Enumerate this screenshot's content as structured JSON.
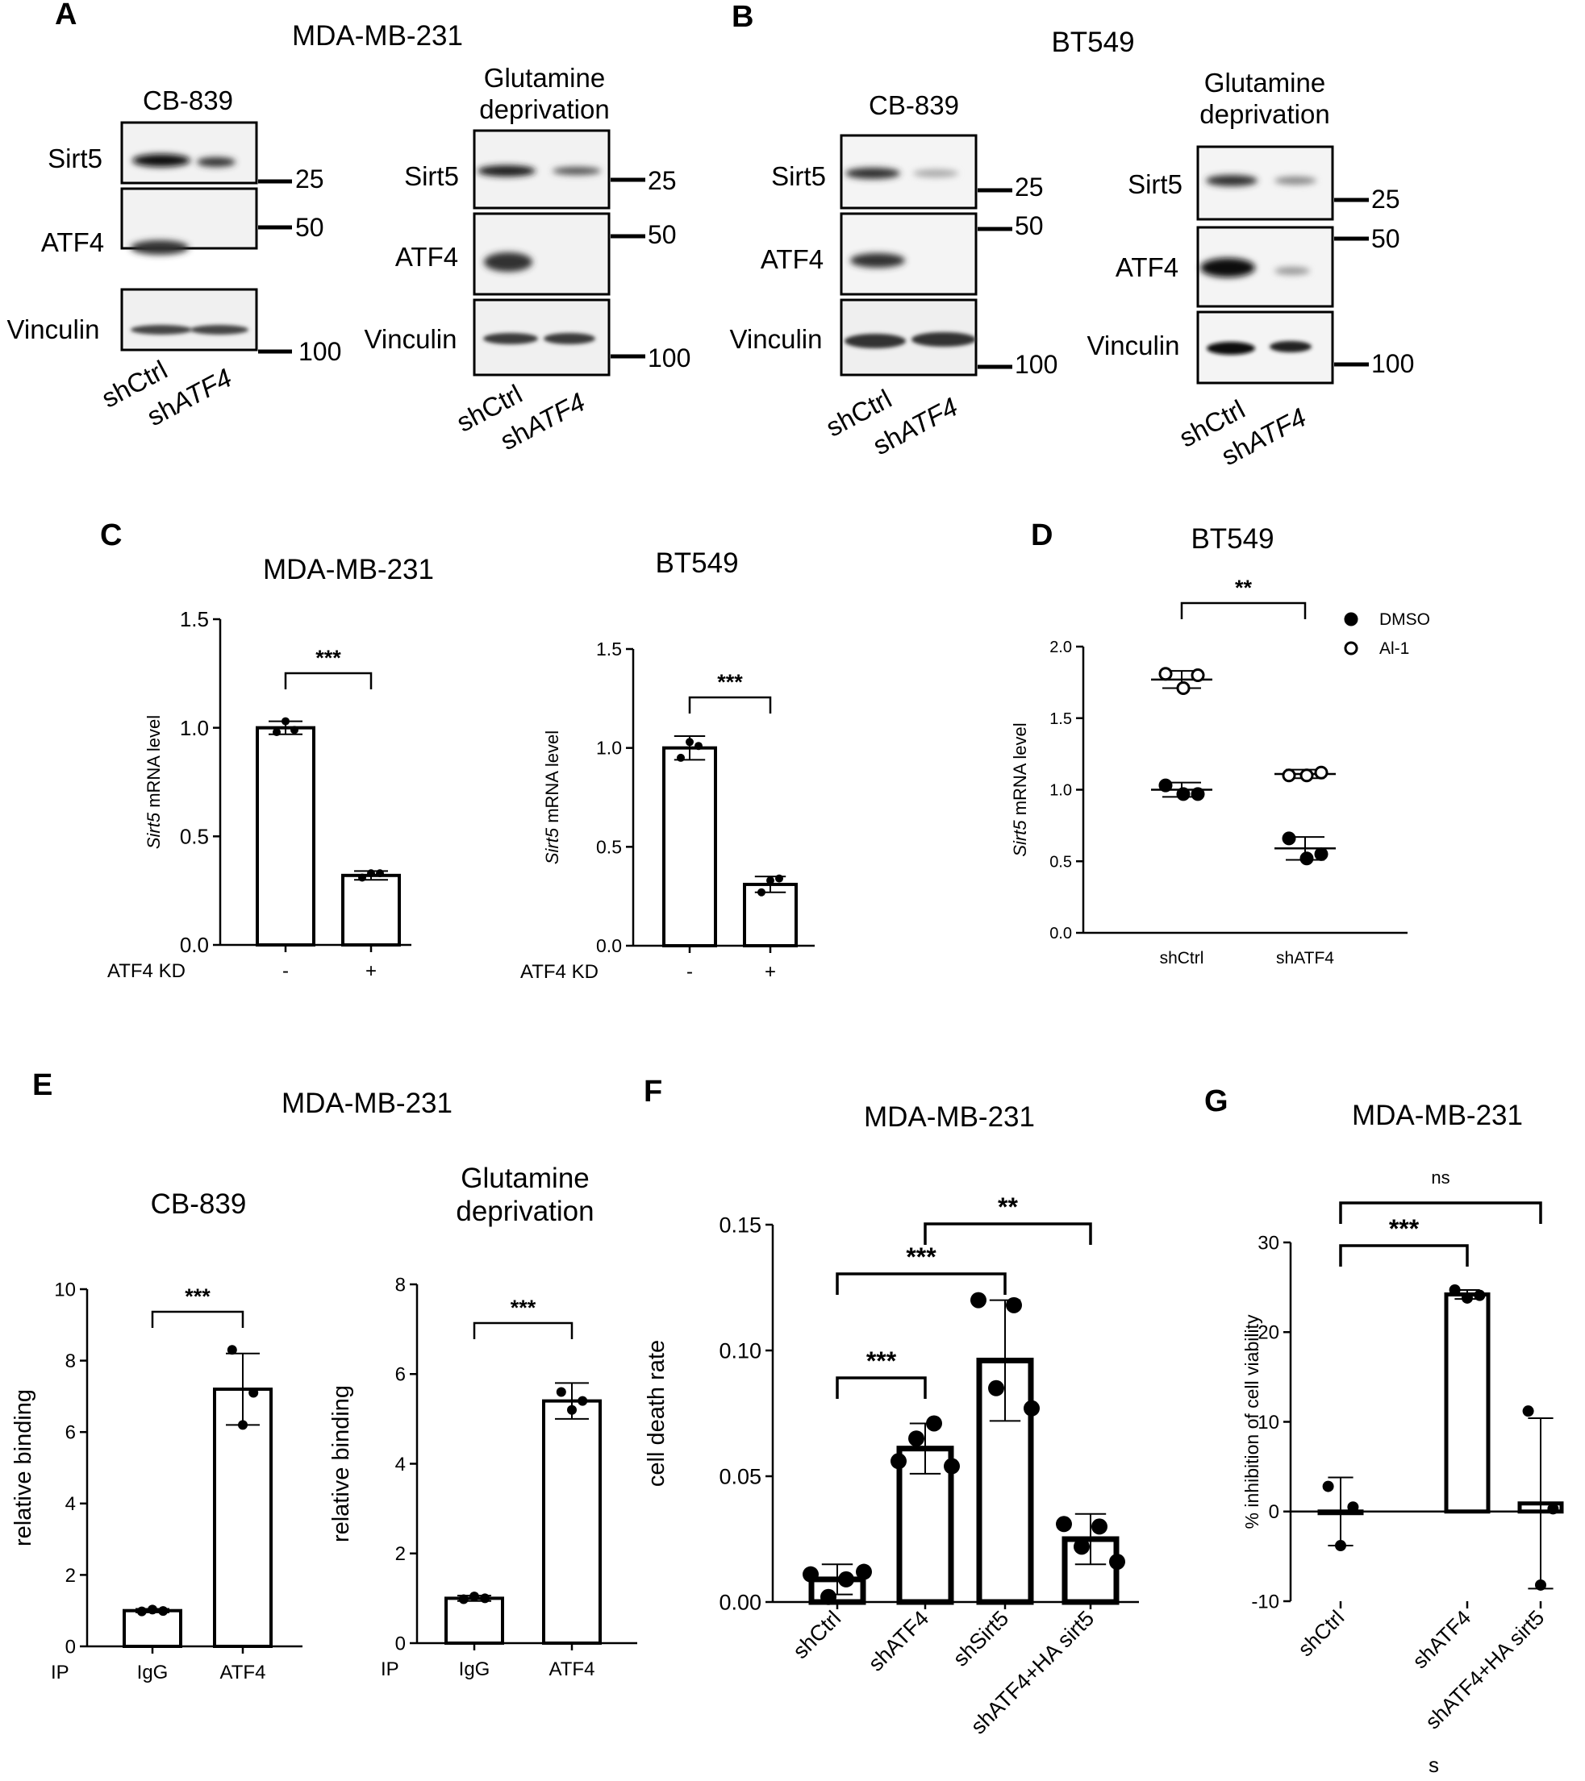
{
  "panels": {
    "A": {
      "letter": "A",
      "cell_line": "MDA-MB-231",
      "blots": [
        {
          "condition": "CB-839",
          "rows": [
            "Sirt5",
            "ATF4",
            "Vinculin"
          ],
          "markers": [
            "25",
            "50",
            "100"
          ],
          "lanes": [
            "shCtrl",
            "sh",
            "ATF4"
          ]
        },
        {
          "condition_line1": "Glutamine",
          "condition_line2": "deprivation",
          "rows": [
            "Sirt5",
            "ATF4",
            "Vinculin"
          ],
          "markers": [
            "25",
            "50",
            "100"
          ],
          "lanes": [
            "shCtrl",
            "sh",
            "ATF4"
          ]
        }
      ]
    },
    "B": {
      "letter": "B",
      "cell_line": "BT549",
      "blots": [
        {
          "condition": "CB-839",
          "rows": [
            "Sirt5",
            "ATF4",
            "Vinculin"
          ],
          "markers": [
            "25",
            "50",
            "100"
          ],
          "lanes": [
            "shCtrl",
            "sh",
            "ATF4"
          ]
        },
        {
          "condition_line1": "Glutamine",
          "condition_line2": "deprivation",
          "rows": [
            "Sirt5",
            "ATF4",
            "Vinculin"
          ],
          "markers": [
            "25",
            "50",
            "100"
          ],
          "lanes": [
            "shCtrl",
            "sh",
            "ATF4"
          ]
        }
      ]
    },
    "C": {
      "letter": "C"
    },
    "D": {
      "letter": "D"
    },
    "E": {
      "letter": "E",
      "cell_line": "MDA-MB-231"
    },
    "F": {
      "letter": "F"
    },
    "G": {
      "letter": "G"
    }
  },
  "chart_data": [
    {
      "id": "C-left",
      "type": "bar",
      "title": "MDA-MB-231",
      "ylabel_italic": "Sirt5",
      "ylabel_rest": " mRNA level",
      "xlabel": "ATF4 KD",
      "categories": [
        "-",
        "+"
      ],
      "values": [
        1.0,
        0.32
      ],
      "errors": [
        0.03,
        0.02
      ],
      "points": [
        [
          0.98,
          1.03,
          0.99
        ],
        [
          0.31,
          0.33,
          0.33
        ]
      ],
      "ylim": [
        0,
        1.5
      ],
      "yticks": [
        "0.0",
        "0.5",
        "1.0",
        "1.5"
      ],
      "significance": [
        {
          "from": 0,
          "to": 1,
          "label": "***"
        }
      ]
    },
    {
      "id": "C-right",
      "type": "bar",
      "title": "BT549",
      "ylabel_italic": "Sirt5",
      "ylabel_rest": " mRNA level",
      "xlabel": "ATF4 KD",
      "categories": [
        "-",
        "+"
      ],
      "values": [
        1.0,
        0.31
      ],
      "errors": [
        0.06,
        0.04
      ],
      "points": [
        [
          0.95,
          1.03,
          1.01
        ],
        [
          0.27,
          0.33,
          0.34
        ]
      ],
      "ylim": [
        0,
        1.5
      ],
      "yticks": [
        "0.0",
        "0.5",
        "1.0",
        "1.5"
      ],
      "significance": [
        {
          "from": 0,
          "to": 1,
          "label": "***"
        }
      ]
    },
    {
      "id": "D",
      "type": "scatter",
      "title": "BT549",
      "ylabel_italic": "Sirt5",
      "ylabel_rest": " mRNA level",
      "categories": [
        "shCtrl",
        "shATF4"
      ],
      "ylim": [
        0,
        2.0
      ],
      "yticks": [
        "0.0",
        "0.5",
        "1.0",
        "1.5",
        "2.0"
      ],
      "series": [
        {
          "name": "DMSO",
          "filled": true,
          "means": [
            1.0,
            0.59
          ],
          "sd": [
            0.05,
            0.08
          ],
          "points": [
            [
              1.03,
              0.97,
              0.97
            ],
            [
              0.66,
              0.52,
              0.55
            ]
          ]
        },
        {
          "name": "Al-1",
          "filled": false,
          "means": [
            1.77,
            1.11
          ],
          "sd": [
            0.06,
            0.03
          ],
          "points": [
            [
              1.81,
              1.71,
              1.8
            ],
            [
              1.1,
              1.1,
              1.12
            ]
          ]
        }
      ],
      "significance": [
        {
          "from": 0,
          "to": 1,
          "label": "**"
        }
      ]
    },
    {
      "id": "E-left",
      "type": "bar",
      "title": "CB-839",
      "ylabel": "relative binding",
      "xprefix": "IP",
      "categories": [
        "IgG",
        "ATF4"
      ],
      "values": [
        1.0,
        7.2
      ],
      "errors": [
        0.05,
        1.0
      ],
      "points": [
        [
          0.98,
          1.03,
          0.99
        ],
        [
          8.3,
          6.2,
          7.1
        ]
      ],
      "ylim": [
        0,
        10
      ],
      "yticks": [
        "0",
        "2",
        "4",
        "6",
        "8",
        "10"
      ],
      "significance": [
        {
          "from": 0,
          "to": 1,
          "label": "***"
        }
      ]
    },
    {
      "id": "E-right",
      "type": "bar",
      "title_line1": "Glutamine",
      "title_line2": "deprivation",
      "ylabel": "relative binding",
      "xprefix": "IP",
      "categories": [
        "IgG",
        "ATF4"
      ],
      "values": [
        1.0,
        5.4
      ],
      "errors": [
        0.06,
        0.4
      ],
      "points": [
        [
          0.98,
          1.04,
          1.0
        ],
        [
          5.6,
          5.2,
          5.4
        ]
      ],
      "ylim": [
        0,
        8
      ],
      "yticks": [
        "0",
        "2",
        "4",
        "6",
        "8"
      ],
      "significance": [
        {
          "from": 0,
          "to": 1,
          "label": "***"
        }
      ]
    },
    {
      "id": "F",
      "type": "bar",
      "title": "MDA-MB-231",
      "ylabel": "cell death rate",
      "categories": [
        "shCtrl",
        "shATF4",
        "shSirt5",
        "shATF4+HA sirt5"
      ],
      "values": [
        0.009,
        0.061,
        0.096,
        0.025
      ],
      "errors": [
        0.006,
        0.01,
        0.024,
        0.01
      ],
      "points": [
        [
          0.011,
          0.002,
          0.009,
          0.012
        ],
        [
          0.056,
          0.065,
          0.071,
          0.054
        ],
        [
          0.12,
          0.085,
          0.118,
          0.077
        ],
        [
          0.031,
          0.022,
          0.03,
          0.016
        ]
      ],
      "ylim": [
        0,
        0.15
      ],
      "yticks": [
        "0.00",
        "0.05",
        "0.10",
        "0.15"
      ],
      "significance": [
        {
          "from": 0,
          "to": 1,
          "label": "***"
        },
        {
          "from": 0,
          "to": 2,
          "label": "***"
        },
        {
          "from": 1,
          "to": 3,
          "label": "**"
        }
      ]
    },
    {
      "id": "G",
      "type": "bar",
      "title": "MDA-MB-231",
      "ylabel": "% inhibition of cell viability",
      "categories": [
        "shCtrl",
        "shATF4",
        "shATF4+HA sirt5"
      ],
      "values": [
        0.0,
        24.2,
        0.9
      ],
      "errors": [
        3.8,
        0.5,
        9.5
      ],
      "points": [
        [
          2.8,
          -3.8,
          0.5
        ],
        [
          24.7,
          23.8,
          24.1
        ],
        [
          11.2,
          -8.2,
          0.3
        ]
      ],
      "ylim": [
        -10,
        30
      ],
      "yticks": [
        "-10",
        "0",
        "10",
        "20",
        "30"
      ],
      "significance": [
        {
          "from": 0,
          "to": 1,
          "label": "***"
        },
        {
          "from": 0,
          "to": 2,
          "label": "ns"
        }
      ],
      "stray_letter": "s"
    }
  ]
}
